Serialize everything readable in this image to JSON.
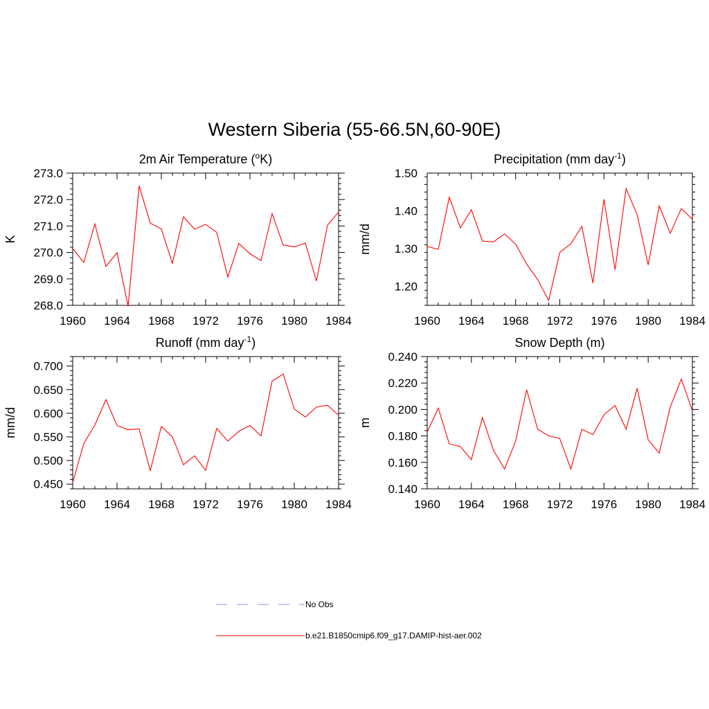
{
  "main_title": "Western Siberia (55-66.5N,60-90E)",
  "legend": {
    "items": [
      {
        "label": "No Obs",
        "color": "#aaaaee",
        "dashed": true
      },
      {
        "label": "b.e21.B1850cmip6.f09_g17.DAMIP-hist-aer.002",
        "color": "#ff0000",
        "dashed": false
      }
    ]
  },
  "colors": {
    "series": "#ff0000",
    "obs": "#aaaaee",
    "axis": "#000000"
  },
  "chart_data": [
    {
      "type": "line",
      "title": "2m Air Temperature (°K)",
      "title_parts": [
        "2m Air Temperature (",
        "o",
        "K)"
      ],
      "ylabel": "K",
      "xlim": [
        1960,
        1984
      ],
      "ylim": [
        268.0,
        273.0
      ],
      "xticks": [
        1960,
        1964,
        1968,
        1972,
        1976,
        1980,
        1984
      ],
      "xtick_labels": [
        "1960",
        "1964",
        "1968",
        "1972",
        "1976",
        "1980",
        "1984"
      ],
      "yticks": [
        268.0,
        269.0,
        270.0,
        271.0,
        272.0,
        273.0
      ],
      "ytick_labels": [
        "268.0",
        "269.0",
        "270.0",
        "271.0",
        "272.0",
        "273.0"
      ],
      "x": [
        1960,
        1961,
        1962,
        1963,
        1964,
        1965,
        1966,
        1967,
        1968,
        1969,
        1970,
        1971,
        1972,
        1973,
        1974,
        1975,
        1976,
        1977,
        1978,
        1979,
        1980,
        1981,
        1982,
        1983,
        1984
      ],
      "series": [
        {
          "name": "b.e21.B1850cmip6.f09_g17.DAMIP-hist-aer.002",
          "values": [
            270.15,
            269.62,
            271.08,
            269.47,
            269.99,
            267.97,
            272.52,
            271.11,
            270.89,
            269.59,
            271.35,
            270.88,
            271.06,
            270.76,
            269.07,
            270.34,
            269.95,
            269.69,
            271.47,
            270.28,
            270.21,
            270.35,
            268.92,
            271.03,
            271.53
          ]
        }
      ]
    },
    {
      "type": "line",
      "title": "Precipitation (mm day-1)",
      "title_parts": [
        "Precipitation (mm day",
        "-1",
        ")"
      ],
      "ylabel": "mm/d",
      "xlim": [
        1960,
        1984
      ],
      "ylim": [
        1.15,
        1.5
      ],
      "xticks": [
        1960,
        1964,
        1968,
        1972,
        1976,
        1980,
        1984
      ],
      "xtick_labels": [
        "1960",
        "1964",
        "1968",
        "1972",
        "1976",
        "1980",
        "1984"
      ],
      "yticks": [
        1.2,
        1.3,
        1.4,
        1.5
      ],
      "ytick_labels": [
        "1.20",
        "1.30",
        "1.40",
        "1.50"
      ],
      "x": [
        1960,
        1961,
        1962,
        1963,
        1964,
        1965,
        1966,
        1967,
        1968,
        1969,
        1970,
        1971,
        1972,
        1973,
        1974,
        1975,
        1976,
        1977,
        1978,
        1979,
        1980,
        1981,
        1982,
        1983,
        1984
      ],
      "series": [
        {
          "name": "b.e21.B1850cmip6.f09_g17.DAMIP-hist-aer.002",
          "values": [
            1.306,
            1.298,
            1.436,
            1.355,
            1.403,
            1.32,
            1.318,
            1.339,
            1.312,
            1.259,
            1.218,
            1.163,
            1.29,
            1.313,
            1.359,
            1.209,
            1.431,
            1.244,
            1.459,
            1.39,
            1.257,
            1.413,
            1.341,
            1.406,
            1.378
          ]
        }
      ]
    },
    {
      "type": "line",
      "title": "Runoff (mm day-1)",
      "title_parts": [
        "Runoff (mm day",
        "-1",
        ")"
      ],
      "ylabel": "mm/d",
      "xlim": [
        1960,
        1984
      ],
      "ylim": [
        0.44,
        0.72
      ],
      "xticks": [
        1960,
        1964,
        1968,
        1972,
        1976,
        1980,
        1984
      ],
      "xtick_labels": [
        "1960",
        "1964",
        "1968",
        "1972",
        "1976",
        "1980",
        "1984"
      ],
      "yticks": [
        0.45,
        0.5,
        0.55,
        0.6,
        0.65,
        0.7
      ],
      "ytick_labels": [
        "0.450",
        "0.500",
        "0.550",
        "0.600",
        "0.650",
        "0.700"
      ],
      "x": [
        1960,
        1961,
        1962,
        1963,
        1964,
        1965,
        1966,
        1967,
        1968,
        1969,
        1970,
        1971,
        1972,
        1973,
        1974,
        1975,
        1976,
        1977,
        1978,
        1979,
        1980,
        1981,
        1982,
        1983,
        1984
      ],
      "series": [
        {
          "name": "b.e21.B1850cmip6.f09_g17.DAMIP-hist-aer.002",
          "values": [
            0.453,
            0.536,
            0.575,
            0.629,
            0.574,
            0.565,
            0.567,
            0.478,
            0.572,
            0.55,
            0.491,
            0.51,
            0.479,
            0.568,
            0.541,
            0.562,
            0.574,
            0.552,
            0.668,
            0.683,
            0.609,
            0.592,
            0.613,
            0.617,
            0.596
          ]
        }
      ]
    },
    {
      "type": "line",
      "title": "Snow Depth (m)",
      "title_parts": [
        "Snow Depth (m)",
        "",
        ""
      ],
      "ylabel": "m",
      "xlim": [
        1960,
        1984
      ],
      "ylim": [
        0.14,
        0.24
      ],
      "xticks": [
        1960,
        1964,
        1968,
        1972,
        1976,
        1980,
        1984
      ],
      "xtick_labels": [
        "1960",
        "1964",
        "1968",
        "1972",
        "1976",
        "1980",
        "1984"
      ],
      "yticks": [
        0.14,
        0.16,
        0.18,
        0.2,
        0.22,
        0.24
      ],
      "ytick_labels": [
        "0.140",
        "0.160",
        "0.180",
        "0.200",
        "0.220",
        "0.240"
      ],
      "x": [
        1960,
        1961,
        1962,
        1963,
        1964,
        1965,
        1966,
        1967,
        1968,
        1969,
        1970,
        1971,
        1972,
        1973,
        1974,
        1975,
        1976,
        1977,
        1978,
        1979,
        1980,
        1981,
        1982,
        1983,
        1984
      ],
      "series": [
        {
          "name": "b.e21.B1850cmip6.f09_g17.DAMIP-hist-aer.002",
          "values": [
            0.183,
            0.201,
            0.174,
            0.172,
            0.162,
            0.194,
            0.169,
            0.155,
            0.176,
            0.215,
            0.185,
            0.18,
            0.178,
            0.155,
            0.185,
            0.181,
            0.196,
            0.203,
            0.185,
            0.216,
            0.177,
            0.167,
            0.202,
            0.223,
            0.199
          ]
        }
      ]
    }
  ]
}
